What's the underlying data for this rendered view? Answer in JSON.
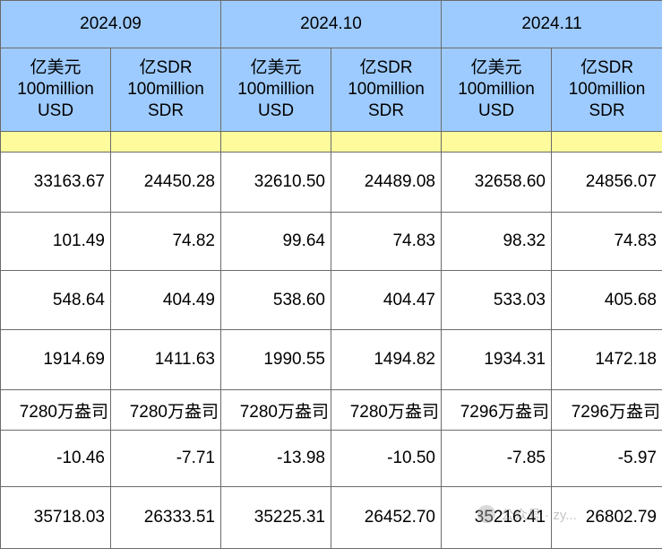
{
  "periods": [
    "2024.09",
    "2024.10",
    "2024.11"
  ],
  "unit_headers": [
    {
      "line1": "亿美元",
      "line2": "100million",
      "line3": "USD"
    },
    {
      "line1": "亿SDR",
      "line2": "100million",
      "line3": "SDR"
    }
  ],
  "rows": [
    [
      "33163.67",
      "24450.28",
      "32610.50",
      "24489.08",
      "32658.60",
      "24856.07"
    ],
    [
      "101.49",
      "74.82",
      "99.64",
      "74.83",
      "98.32",
      "74.83"
    ],
    [
      "548.64",
      "404.49",
      "538.60",
      "404.47",
      "533.03",
      "405.68"
    ],
    [
      "1914.69",
      "1411.63",
      "1990.55",
      "1494.82",
      "1934.31",
      "1472.18"
    ],
    [
      "7280万盎司",
      "7280万盎司",
      "7280万盎司",
      "7280万盎司",
      "7296万盎司",
      "7296万盎司"
    ],
    [
      "-10.46",
      "-7.71",
      "-13.98",
      "-10.50",
      "-7.85",
      "-5.97"
    ],
    [
      "35718.03",
      "26333.51",
      "35225.31",
      "26452.70",
      "35216.41",
      "26802.79"
    ]
  ],
  "watermark": {
    "icon": "wechat-icon",
    "text": "公众号 · zy..."
  }
}
